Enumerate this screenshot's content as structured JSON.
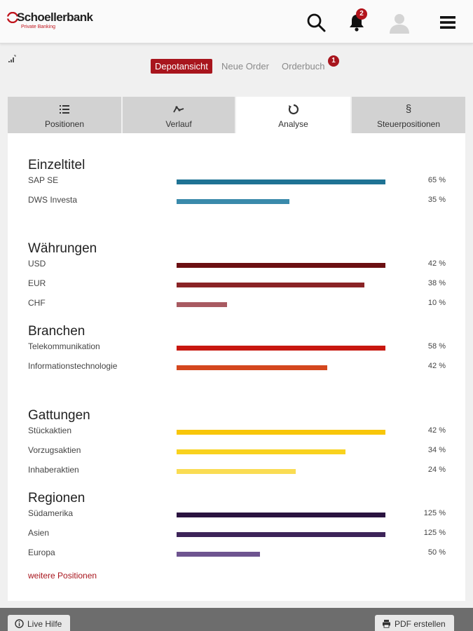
{
  "header": {
    "logo_name": "Schoellerbank",
    "logo_sub": "Private Banking",
    "notification_count": "2",
    "brand_color": "#b3141c"
  },
  "subnav": {
    "items": [
      "Depotansicht",
      "Neue Order",
      "Orderbuch"
    ],
    "orderbuch_badge": "1"
  },
  "tabs": [
    {
      "label": "Positionen",
      "icon": "list-icon"
    },
    {
      "label": "Verlauf",
      "icon": "line-chart-icon"
    },
    {
      "label": "Analyse",
      "icon": "refresh-icon"
    },
    {
      "label": "Steuerpositionen",
      "icon": "paragraph-icon"
    }
  ],
  "active_tab": "Analyse",
  "sections": [
    {
      "title": "Einzeltitel",
      "rows": [
        {
          "label": "SAP SE",
          "value": "65 %",
          "fill": 1.0,
          "color": "#1f7394"
        },
        {
          "label": "DWS Investa",
          "value": "35 %",
          "fill": 0.54,
          "color": "#3a8aab"
        }
      ]
    },
    {
      "title": "Währungen",
      "rows": [
        {
          "label": "USD",
          "value": "42 %",
          "fill": 1.0,
          "color": "#6b0f12"
        },
        {
          "label": "EUR",
          "value": "38 %",
          "fill": 0.9,
          "color": "#8a2326"
        },
        {
          "label": "CHF",
          "value": "10 %",
          "fill": 0.24,
          "color": "#a85a61"
        }
      ]
    },
    {
      "title": "Branchen",
      "rows": [
        {
          "label": "Telekommunikation",
          "value": "58 %",
          "fill": 1.0,
          "color": "#c8170f"
        },
        {
          "label": "Informationstechnologie",
          "value": "42 %",
          "fill": 0.72,
          "color": "#d4471e"
        }
      ]
    },
    {
      "title": "Gattungen",
      "rows": [
        {
          "label": "Stückaktien",
          "value": "42 %",
          "fill": 1.0,
          "color": "#f8c60a"
        },
        {
          "label": "Vorzugsaktien",
          "value": "34 %",
          "fill": 0.81,
          "color": "#f9d21e"
        },
        {
          "label": "Inhaberaktien",
          "value": "24 %",
          "fill": 0.57,
          "color": "#fadc53"
        }
      ]
    },
    {
      "title": "Regionen",
      "rows": [
        {
          "label": "Südamerika",
          "value": "125 %",
          "fill": 1.0,
          "color": "#2a1340"
        },
        {
          "label": "Asien",
          "value": "125 %",
          "fill": 1.0,
          "color": "#3d2459"
        },
        {
          "label": "Europa",
          "value": "50 %",
          "fill": 0.4,
          "color": "#6e5490"
        }
      ]
    }
  ],
  "more_link": "weitere Positionen",
  "footer": {
    "help_label": "Live Hilfe",
    "pdf_label": "PDF erstellen"
  }
}
